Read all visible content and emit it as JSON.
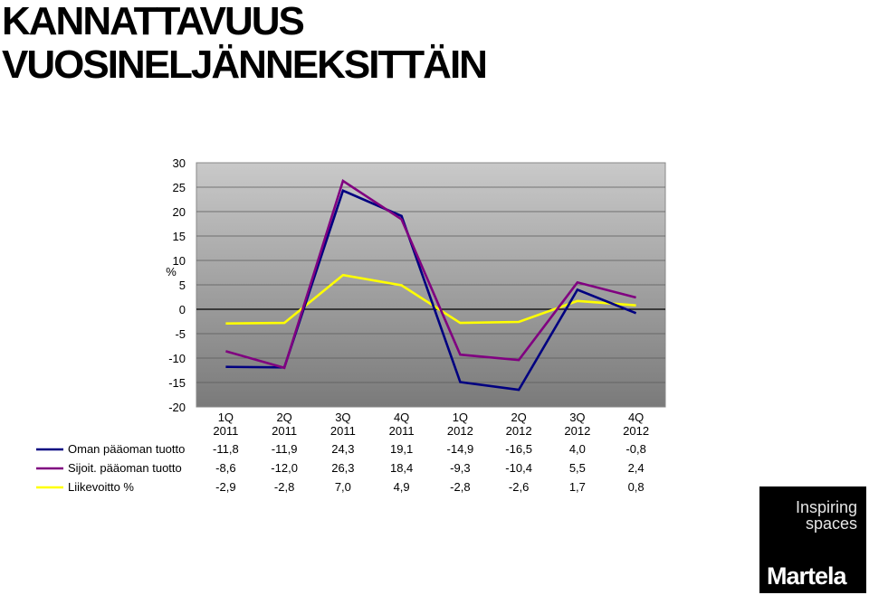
{
  "title_lines": [
    "KANNATTAVUUS",
    "VUOSINELJÄNNEKSITTÄIN"
  ],
  "logo": {
    "tagline_line1": "Inspiring",
    "tagline_line2": "spaces",
    "name": "Martela"
  },
  "chart_data": {
    "type": "line",
    "ylabel": "%",
    "ylim": [
      -20,
      30
    ],
    "yticks": [
      30,
      25,
      20,
      15,
      10,
      5,
      0,
      -5,
      -10,
      -15,
      -20
    ],
    "categories": [
      [
        "1Q",
        "2011"
      ],
      [
        "2Q",
        "2011"
      ],
      [
        "3Q",
        "2011"
      ],
      [
        "4Q",
        "2011"
      ],
      [
        "1Q",
        "2012"
      ],
      [
        "2Q",
        "2012"
      ],
      [
        "3Q",
        "2012"
      ],
      [
        "4Q",
        "2012"
      ]
    ],
    "grid": true,
    "legend": "data-table-below",
    "series": [
      {
        "name": "Oman pääoman tuotto",
        "color": "#000080",
        "values": [
          -11.8,
          -11.9,
          24.3,
          19.1,
          -14.9,
          -16.5,
          4.0,
          -0.8
        ],
        "labels": [
          "-11,8",
          "-11,9",
          "24,3",
          "19,1",
          "-14,9",
          "-16,5",
          "4,0",
          "-0,8"
        ]
      },
      {
        "name": "Sijoit. pääoman tuotto",
        "color": "#800080",
        "values": [
          -8.6,
          -12.0,
          26.3,
          18.4,
          -9.3,
          -10.4,
          5.5,
          2.4
        ],
        "labels": [
          "-8,6",
          "-12,0",
          "26,3",
          "18,4",
          "-9,3",
          "-10,4",
          "5,5",
          "2,4"
        ]
      },
      {
        "name": "Liikevoitto %",
        "color": "#ffff00",
        "values": [
          -2.9,
          -2.8,
          7.0,
          4.9,
          -2.8,
          -2.6,
          1.7,
          0.8
        ],
        "labels": [
          "-2,9",
          "-2,8",
          "7,0",
          "4,9",
          "-2,8",
          "-2,6",
          "1,7",
          "0,8"
        ]
      }
    ]
  }
}
